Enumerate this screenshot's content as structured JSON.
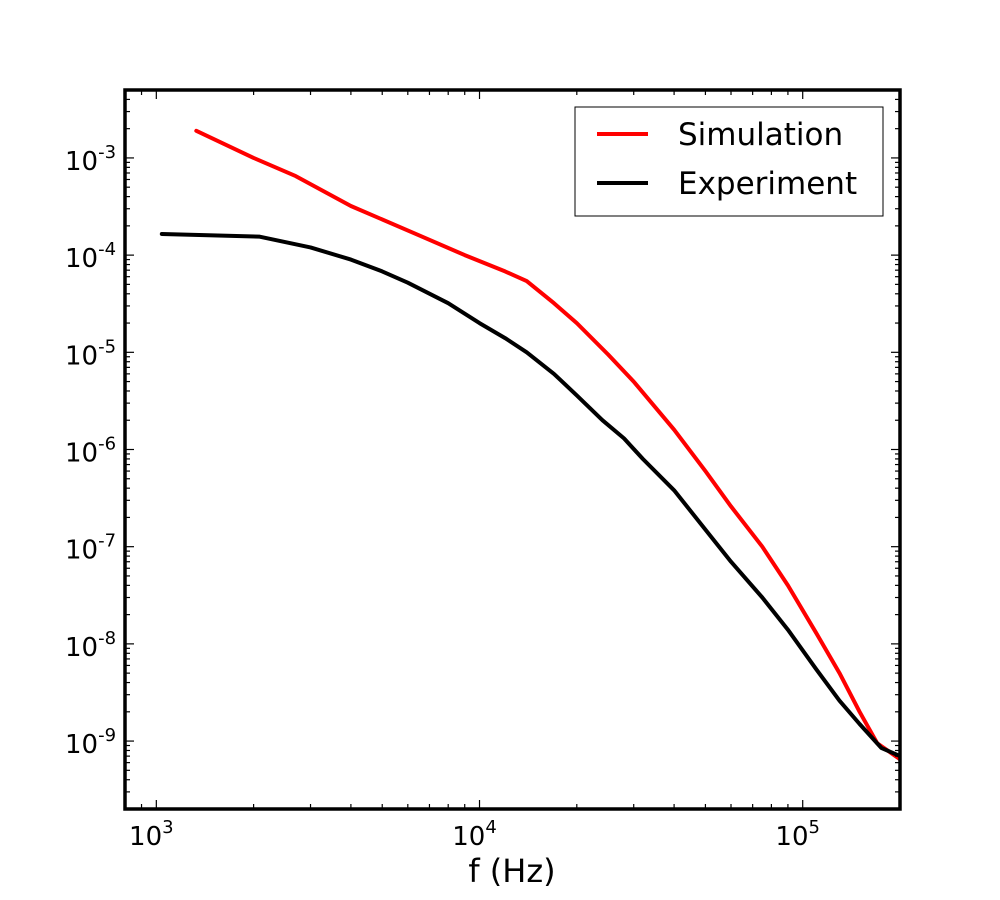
{
  "chart_data": {
    "type": "line",
    "title": "",
    "xlabel": "f (Hz)",
    "ylabel": "",
    "xscale": "log",
    "yscale": "log",
    "xlim": [
      800,
      200000
    ],
    "ylim": [
      2e-10,
      0.005
    ],
    "grid": false,
    "legend_position": "top-right",
    "x_ticks": [
      {
        "value": 1000,
        "base": "10",
        "exp": "3"
      },
      {
        "value": 10000,
        "base": "10",
        "exp": "4"
      },
      {
        "value": 100000,
        "base": "10",
        "exp": "5"
      }
    ],
    "y_ticks": [
      {
        "value": 0.001,
        "base": "10",
        "exp": "-3"
      },
      {
        "value": 0.0001,
        "base": "10",
        "exp": "-4"
      },
      {
        "value": 1e-05,
        "base": "10",
        "exp": "-5"
      },
      {
        "value": 1e-06,
        "base": "10",
        "exp": "-6"
      },
      {
        "value": 1e-07,
        "base": "10",
        "exp": "-7"
      },
      {
        "value": 1e-08,
        "base": "10",
        "exp": "-8"
      },
      {
        "value": 1e-09,
        "base": "10",
        "exp": "-9"
      }
    ],
    "series": [
      {
        "name": "Simulation",
        "color": "#ff0000",
        "points": [
          [
            1330,
            0.0019
          ],
          [
            2000,
            0.001
          ],
          [
            2700,
            0.00065
          ],
          [
            4000,
            0.00032
          ],
          [
            6500,
            0.00016
          ],
          [
            9000,
            0.0001
          ],
          [
            12000,
            6.8e-05
          ],
          [
            14000,
            5.4e-05
          ],
          [
            17000,
            3.2e-05
          ],
          [
            20000,
            2e-05
          ],
          [
            25000,
            9.5e-06
          ],
          [
            30000,
            5e-06
          ],
          [
            40000,
            1.6e-06
          ],
          [
            50000,
            6e-07
          ],
          [
            60000,
            2.6e-07
          ],
          [
            75000,
            1e-07
          ],
          [
            90000,
            4e-08
          ],
          [
            110000,
            1.3e-08
          ],
          [
            130000,
            5e-09
          ],
          [
            150000,
            2e-09
          ],
          [
            170000,
            9.5e-10
          ],
          [
            200000,
            6.5e-10
          ]
        ]
      },
      {
        "name": "Experiment",
        "color": "#000000",
        "points": [
          [
            1040,
            0.000165
          ],
          [
            2080,
            0.000155
          ],
          [
            3000,
            0.00012
          ],
          [
            4000,
            9e-05
          ],
          [
            5000,
            6.8e-05
          ],
          [
            6000,
            5.2e-05
          ],
          [
            8000,
            3.2e-05
          ],
          [
            10000,
            2e-05
          ],
          [
            12000,
            1.4e-05
          ],
          [
            14000,
            1e-05
          ],
          [
            17000,
            6e-06
          ],
          [
            20000,
            3.6e-06
          ],
          [
            24000,
            2e-06
          ],
          [
            28000,
            1.3e-06
          ],
          [
            32000,
            8e-07
          ],
          [
            40000,
            3.8e-07
          ],
          [
            50000,
            1.5e-07
          ],
          [
            60000,
            7e-08
          ],
          [
            75000,
            3e-08
          ],
          [
            90000,
            1.4e-08
          ],
          [
            110000,
            5.5e-09
          ],
          [
            130000,
            2.6e-09
          ],
          [
            150000,
            1.5e-09
          ],
          [
            175000,
            8.5e-10
          ],
          [
            200000,
            7e-10
          ]
        ]
      }
    ]
  }
}
